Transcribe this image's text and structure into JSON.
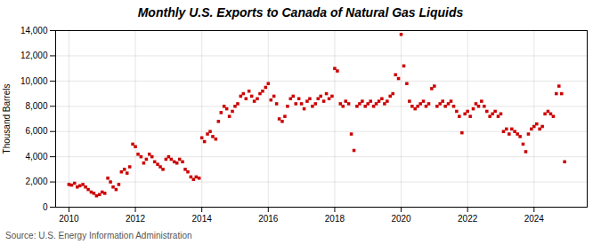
{
  "chart_data": {
    "type": "scatter",
    "title": "Monthly U.S. Exports to Canada of Natural Gas Liquids",
    "ylabel": "Thousand Barrels",
    "source": "Source: U.S. Energy Information Administration",
    "color": "#cc0000",
    "marker": "square",
    "grid": true,
    "xlim": [
      2009.6,
      2025.6
    ],
    "xticks": [
      2010,
      2012,
      2014,
      2016,
      2018,
      2020,
      2022,
      2024
    ],
    "ylim": [
      0,
      14000
    ],
    "yticks": [
      0,
      {
        "value": 2000,
        "label": "2,000"
      },
      {
        "value": 4000,
        "label": "4,000"
      },
      {
        "value": 6000,
        "label": "6,000"
      },
      {
        "value": 8000,
        "label": "8,000"
      },
      {
        "value": 10000,
        "label": "10,000"
      },
      {
        "value": 12000,
        "label": "12,000"
      },
      {
        "value": 14000,
        "label": "14,000"
      }
    ],
    "x": [
      2010.0,
      2010.08,
      2010.17,
      2010.25,
      2010.33,
      2010.42,
      2010.5,
      2010.58,
      2010.67,
      2010.75,
      2010.83,
      2010.92,
      2011.0,
      2011.08,
      2011.17,
      2011.25,
      2011.33,
      2011.42,
      2011.5,
      2011.58,
      2011.67,
      2011.75,
      2011.83,
      2011.92,
      2012.0,
      2012.08,
      2012.17,
      2012.25,
      2012.33,
      2012.42,
      2012.5,
      2012.58,
      2012.67,
      2012.75,
      2012.83,
      2012.92,
      2013.0,
      2013.08,
      2013.17,
      2013.25,
      2013.33,
      2013.42,
      2013.5,
      2013.58,
      2013.67,
      2013.75,
      2013.83,
      2013.92,
      2014.0,
      2014.08,
      2014.17,
      2014.25,
      2014.33,
      2014.42,
      2014.5,
      2014.58,
      2014.67,
      2014.75,
      2014.83,
      2014.92,
      2015.0,
      2015.08,
      2015.17,
      2015.25,
      2015.33,
      2015.42,
      2015.5,
      2015.58,
      2015.67,
      2015.75,
      2015.83,
      2015.92,
      2016.0,
      2016.08,
      2016.17,
      2016.25,
      2016.33,
      2016.42,
      2016.5,
      2016.58,
      2016.67,
      2016.75,
      2016.83,
      2016.92,
      2017.0,
      2017.08,
      2017.17,
      2017.25,
      2017.33,
      2017.42,
      2017.5,
      2017.58,
      2017.67,
      2017.75,
      2017.83,
      2017.92,
      2018.0,
      2018.08,
      2018.17,
      2018.25,
      2018.33,
      2018.42,
      2018.5,
      2018.58,
      2018.67,
      2018.75,
      2018.83,
      2018.92,
      2019.0,
      2019.08,
      2019.17,
      2019.25,
      2019.33,
      2019.42,
      2019.5,
      2019.58,
      2019.67,
      2019.75,
      2019.83,
      2019.92,
      2020.0,
      2020.08,
      2020.17,
      2020.25,
      2020.33,
      2020.42,
      2020.5,
      2020.58,
      2020.67,
      2020.75,
      2020.83,
      2020.92,
      2021.0,
      2021.08,
      2021.17,
      2021.25,
      2021.33,
      2021.42,
      2021.5,
      2021.58,
      2021.67,
      2021.75,
      2021.83,
      2021.92,
      2022.0,
      2022.08,
      2022.17,
      2022.25,
      2022.33,
      2022.42,
      2022.5,
      2022.58,
      2022.67,
      2022.75,
      2022.83,
      2022.92,
      2023.0,
      2023.08,
      2023.17,
      2023.25,
      2023.33,
      2023.42,
      2023.5,
      2023.58,
      2023.67,
      2023.75,
      2023.83,
      2023.92,
      2024.0,
      2024.08,
      2024.17,
      2024.25,
      2024.33,
      2024.42,
      2024.5,
      2024.58,
      2024.67,
      2024.75,
      2024.83,
      2024.92
    ],
    "values": [
      1800,
      1750,
      1900,
      1600,
      1700,
      1800,
      1600,
      1400,
      1200,
      1100,
      900,
      1000,
      1200,
      1100,
      2300,
      2000,
      1600,
      1400,
      1800,
      2800,
      3000,
      2700,
      3200,
      5000,
      4800,
      4200,
      4000,
      3500,
      3800,
      4200,
      4000,
      3600,
      3400,
      3200,
      3000,
      3800,
      4000,
      3800,
      3600,
      3500,
      3800,
      3600,
      3000,
      2800,
      2400,
      2200,
      2400,
      2300,
      5500,
      5200,
      5800,
      6000,
      5600,
      5400,
      6800,
      7500,
      8000,
      7800,
      7200,
      7600,
      8000,
      8200,
      8800,
      9000,
      8600,
      9200,
      8800,
      8400,
      8600,
      9000,
      9200,
      9500,
      9800,
      8500,
      8800,
      8200,
      7000,
      6800,
      7200,
      8000,
      8600,
      8800,
      8200,
      8600,
      8200,
      7800,
      8400,
      8600,
      8000,
      8200,
      8600,
      8800,
      8400,
      9000,
      8600,
      8800,
      11000,
      10800,
      8200,
      8000,
      8400,
      8200,
      5800,
      4500,
      8000,
      8200,
      8400,
      8000,
      8200,
      8400,
      8000,
      8200,
      8400,
      8600,
      8200,
      8400,
      8800,
      9000,
      10500,
      10200,
      13700,
      11200,
      9800,
      8400,
      8000,
      7800,
      8000,
      8200,
      8400,
      8000,
      8200,
      9400,
      9600,
      8000,
      8200,
      8400,
      8000,
      8200,
      8400,
      8000,
      7600,
      7200,
      5900,
      7400,
      7600,
      7200,
      7800,
      8200,
      8000,
      8400,
      8000,
      7600,
      7200,
      7400,
      7600,
      7200,
      7400,
      6000,
      6200,
      5800,
      6200,
      6000,
      5800,
      5600,
      5000,
      4400,
      5800,
      6200,
      6400,
      6600,
      6200,
      6400,
      7400,
      7600,
      7400,
      7200,
      9000,
      9600,
      9000,
      3600
    ]
  }
}
